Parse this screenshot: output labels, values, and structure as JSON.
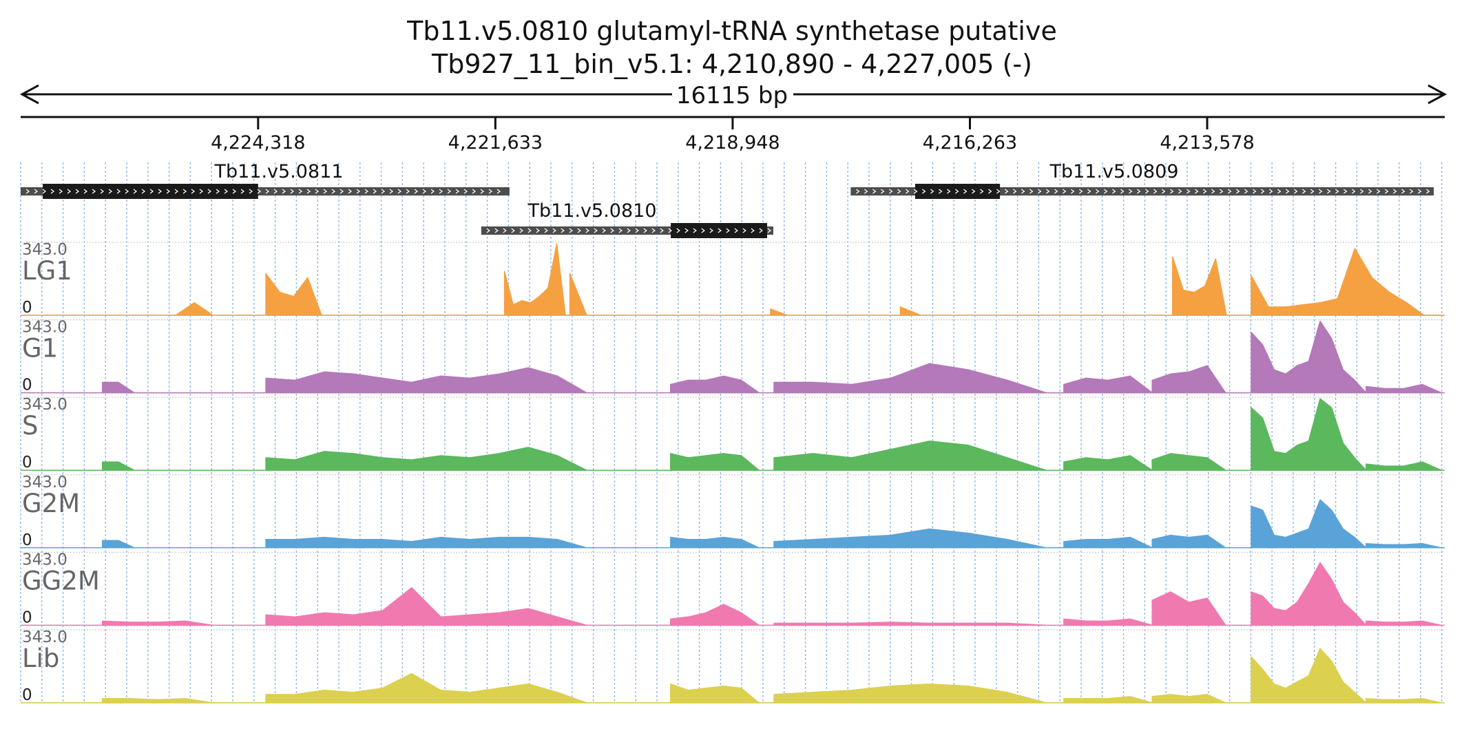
{
  "title_line1": "Tb11.v5.0810  glutamyl-tRNA synthetase  putative",
  "title_line2": "Tb927_11_bin_v5.1: 4,210,890 - 4,227,005 (-)",
  "span_label": "16115 bp",
  "chart_data": {
    "type": "area",
    "title": "Tb11.v5.0810  glutamyl-tRNA synthetase  putative",
    "subtitle": "Tb927_11_bin_v5.1: 4,210,890 - 4,227,005 (-)",
    "xlabel": "",
    "ylabel": "",
    "x_axis": {
      "start": 4227005,
      "end": 4210890,
      "direction": "reversed",
      "ticks": [
        4224318,
        4221633,
        4218948,
        4216263,
        4213578
      ],
      "tick_labels": [
        "4,224,318",
        "4,221,633",
        "4,218,948",
        "4,216,263",
        "4,213,578"
      ],
      "grid": true
    },
    "ylim": [
      0,
      343.0
    ],
    "y_tick_labels": [
      "343.0",
      "0"
    ],
    "genes": [
      {
        "name": "Tb11.v5.0811",
        "start": 4227005,
        "end": 4221473,
        "cds": [
          4226755,
          4224318
        ]
      },
      {
        "name": "Tb11.v5.0810",
        "start": 4221793,
        "end": 4218488,
        "cds": [
          4219648,
          4218558
        ]
      },
      {
        "name": "Tb11.v5.0809",
        "start": 4217612,
        "end": 4211014,
        "cds": [
          4216883,
          4215923
        ]
      }
    ],
    "tracks": [
      {
        "name": "LG1",
        "color": "#f5a142",
        "segments": [
          [
            4225250,
            4224830,
            [
              0,
              60,
              0
            ]
          ],
          [
            4224230,
            4223600,
            [
              200,
              110,
              90,
              180,
              0
            ]
          ],
          [
            4221530,
            4220840,
            [
              210,
              50,
              70,
              60,
              90,
              130,
              343,
              0
            ]
          ],
          [
            4220790,
            4220600,
            [
              200,
              0
            ]
          ],
          [
            4218520,
            4218330,
            [
              30,
              0
            ]
          ],
          [
            4217050,
            4216820,
            [
              40,
              0
            ]
          ],
          [
            4213970,
            4213360,
            [
              280,
              120,
              110,
              140,
              270,
              0
            ]
          ],
          [
            4213080,
            4210930,
            [
              190,
              40,
              40,
              50,
              60,
              80,
              320,
              180,
              110,
              60,
              0,
              0
            ]
          ]
        ]
      },
      {
        "name": "G1",
        "color": "#b479b8",
        "segments": [
          [
            4226080,
            4225720,
            [
              50,
              50,
              0
            ]
          ],
          [
            4224230,
            4220600,
            [
              70,
              60,
              100,
              90,
              70,
              50,
              80,
              70,
              90,
              120,
              80,
              0
            ]
          ],
          [
            4219650,
            4218650,
            [
              40,
              60,
              60,
              80,
              60,
              0
            ]
          ],
          [
            4218480,
            4215400,
            [
              50,
              50,
              40,
              70,
              140,
              110,
              60,
              0
            ]
          ],
          [
            4215200,
            4214200,
            [
              40,
              70,
              60,
              80,
              0
            ]
          ],
          [
            4214200,
            4213370,
            [
              60,
              90,
              100,
              130,
              0
            ]
          ],
          [
            4213080,
            4211780,
            [
              290,
              230,
              110,
              90,
              130,
              150,
              343,
              260,
              110,
              60,
              0
            ]
          ],
          [
            4211780,
            4210930,
            [
              30,
              20,
              20,
              40,
              0
            ]
          ]
        ]
      },
      {
        "name": "S",
        "color": "#5bb85d",
        "segments": [
          [
            4226080,
            4225720,
            [
              40,
              40,
              0
            ]
          ],
          [
            4224230,
            4220600,
            [
              60,
              50,
              90,
              80,
              60,
              50,
              70,
              60,
              80,
              110,
              70,
              0
            ]
          ],
          [
            4219650,
            4218650,
            [
              80,
              60,
              70,
              80,
              70,
              0
            ]
          ],
          [
            4218480,
            4215400,
            [
              60,
              80,
              60,
              100,
              140,
              120,
              60,
              0
            ]
          ],
          [
            4215200,
            4214200,
            [
              40,
              60,
              50,
              70,
              0
            ]
          ],
          [
            4214200,
            4213370,
            [
              50,
              80,
              70,
              60,
              0
            ]
          ],
          [
            4213080,
            4211780,
            [
              300,
              250,
              90,
              80,
              120,
              140,
              343,
              300,
              130,
              60,
              0
            ]
          ],
          [
            4211780,
            4210930,
            [
              30,
              20,
              20,
              40,
              0
            ]
          ]
        ]
      },
      {
        "name": "G2M",
        "color": "#5aa3d8",
        "segments": [
          [
            4226080,
            4225720,
            [
              35,
              35,
              0
            ]
          ],
          [
            4224230,
            4220600,
            [
              40,
              40,
              50,
              40,
              40,
              30,
              50,
              40,
              50,
              50,
              40,
              0
            ]
          ],
          [
            4219650,
            4218650,
            [
              50,
              40,
              40,
              50,
              40,
              0
            ]
          ],
          [
            4218480,
            4215400,
            [
              30,
              40,
              50,
              60,
              90,
              70,
              40,
              0
            ]
          ],
          [
            4215200,
            4214200,
            [
              30,
              40,
              40,
              50,
              0
            ]
          ],
          [
            4214200,
            4213370,
            [
              40,
              60,
              50,
              60,
              0
            ]
          ],
          [
            4213080,
            4211780,
            [
              200,
              180,
              60,
              50,
              70,
              90,
              230,
              180,
              90,
              50,
              0
            ]
          ],
          [
            4211780,
            4210930,
            [
              20,
              15,
              15,
              20,
              0
            ]
          ]
        ]
      },
      {
        "name": "GG2M",
        "color": "#f07ab0",
        "segments": [
          [
            4226080,
            4224830,
            [
              20,
              15,
              15,
              20,
              0
            ]
          ],
          [
            4224230,
            4220600,
            [
              50,
              40,
              60,
              50,
              70,
              180,
              40,
              50,
              60,
              80,
              40,
              0
            ]
          ],
          [
            4219650,
            4218650,
            [
              30,
              40,
              60,
              100,
              60,
              0
            ]
          ],
          [
            4218480,
            4215400,
            [
              10,
              10,
              10,
              15,
              10,
              10,
              10,
              0
            ]
          ],
          [
            4215200,
            4214200,
            [
              30,
              20,
              20,
              30,
              0
            ]
          ],
          [
            4214200,
            4213370,
            [
              120,
              160,
              110,
              130,
              0
            ]
          ],
          [
            4213080,
            4211780,
            [
              160,
              140,
              80,
              70,
              110,
              200,
              300,
              220,
              110,
              60,
              0
            ]
          ],
          [
            4211780,
            4210930,
            [
              20,
              15,
              15,
              20,
              0
            ]
          ]
        ]
      },
      {
        "name": "Lib",
        "color": "#dcd04f",
        "segments": [
          [
            4226080,
            4224830,
            [
              20,
              20,
              15,
              20,
              0
            ]
          ],
          [
            4224230,
            4220600,
            [
              40,
              40,
              60,
              50,
              70,
              140,
              60,
              50,
              70,
              90,
              50,
              0
            ]
          ],
          [
            4219650,
            4218650,
            [
              90,
              60,
              70,
              80,
              70,
              0
            ]
          ],
          [
            4218480,
            4215400,
            [
              40,
              50,
              60,
              80,
              90,
              80,
              50,
              0
            ]
          ],
          [
            4215200,
            4214200,
            [
              20,
              20,
              20,
              30,
              0
            ]
          ],
          [
            4214200,
            4213370,
            [
              30,
              40,
              30,
              40,
              0
            ]
          ],
          [
            4213080,
            4211780,
            [
              220,
              160,
              90,
              70,
              100,
              130,
              260,
              200,
              100,
              50,
              0
            ]
          ],
          [
            4211780,
            4210930,
            [
              20,
              15,
              15,
              20,
              0
            ]
          ]
        ]
      }
    ]
  }
}
